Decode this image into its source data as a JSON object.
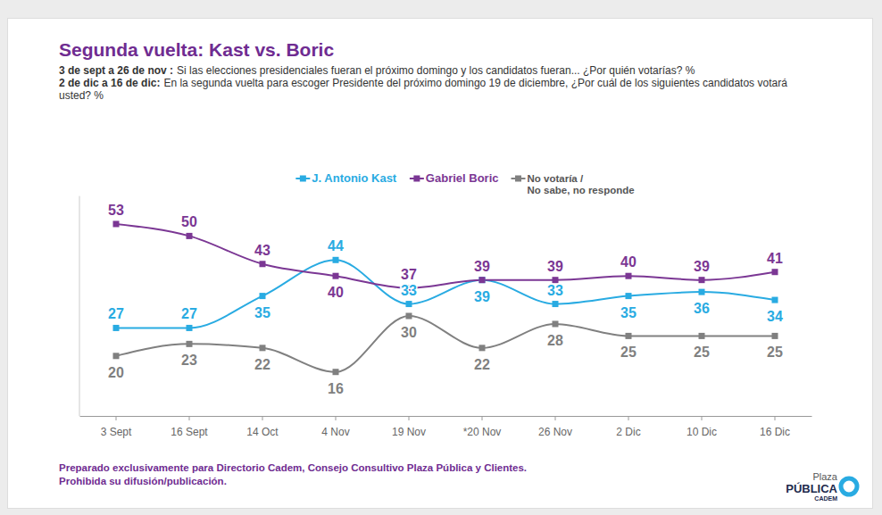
{
  "chart_data": {
    "type": "line",
    "title": "Segunda vuelta: Kast vs. Boric",
    "notes": [
      {
        "label": "3 de sept a 26 de nov :",
        "text": "Si las elecciones presidenciales fueran el próximo domingo y los candidatos fueran... ¿Por quién votarías? %"
      },
      {
        "label": "2 de dic a 16 de dic:",
        "text": "En la segunda vuelta para escoger Presidente del próximo domingo 19 de diciembre, ¿Por cuál de los siguientes candidatos votará usted? %"
      }
    ],
    "categories": [
      "3 Sept",
      "16 Sept",
      "14 Oct",
      "4 Nov",
      "19 Nov",
      "*20 Nov",
      "26 Nov",
      "2 Dic",
      "10 Dic",
      "16 Dic"
    ],
    "series": [
      {
        "name": "J. Antonio Kast",
        "color": "#29abe2",
        "values": [
          27,
          27,
          35,
          44,
          33,
          39,
          33,
          35,
          36,
          34
        ]
      },
      {
        "name": "Gabriel Boric",
        "color": "#7b3794",
        "values": [
          53,
          50,
          43,
          40,
          37,
          39,
          39,
          40,
          39,
          41
        ]
      },
      {
        "name": "No votaría / No sabe, no responde",
        "color": "#808080",
        "values": [
          20,
          23,
          22,
          16,
          30,
          22,
          28,
          25,
          25,
          25
        ]
      }
    ],
    "ylim": [
      5,
      60
    ],
    "tick_labels": "x",
    "data_labels": true,
    "marker": "square",
    "legend": "top",
    "footnote": [
      "Preparado exclusivamente para Directorio Cadem, Consejo Consultivo Plaza Pública y Clientes.",
      "Prohibida su difusión/publicación."
    ],
    "logo": [
      "Plaza",
      "PÚBLICA",
      "CADEM"
    ]
  }
}
